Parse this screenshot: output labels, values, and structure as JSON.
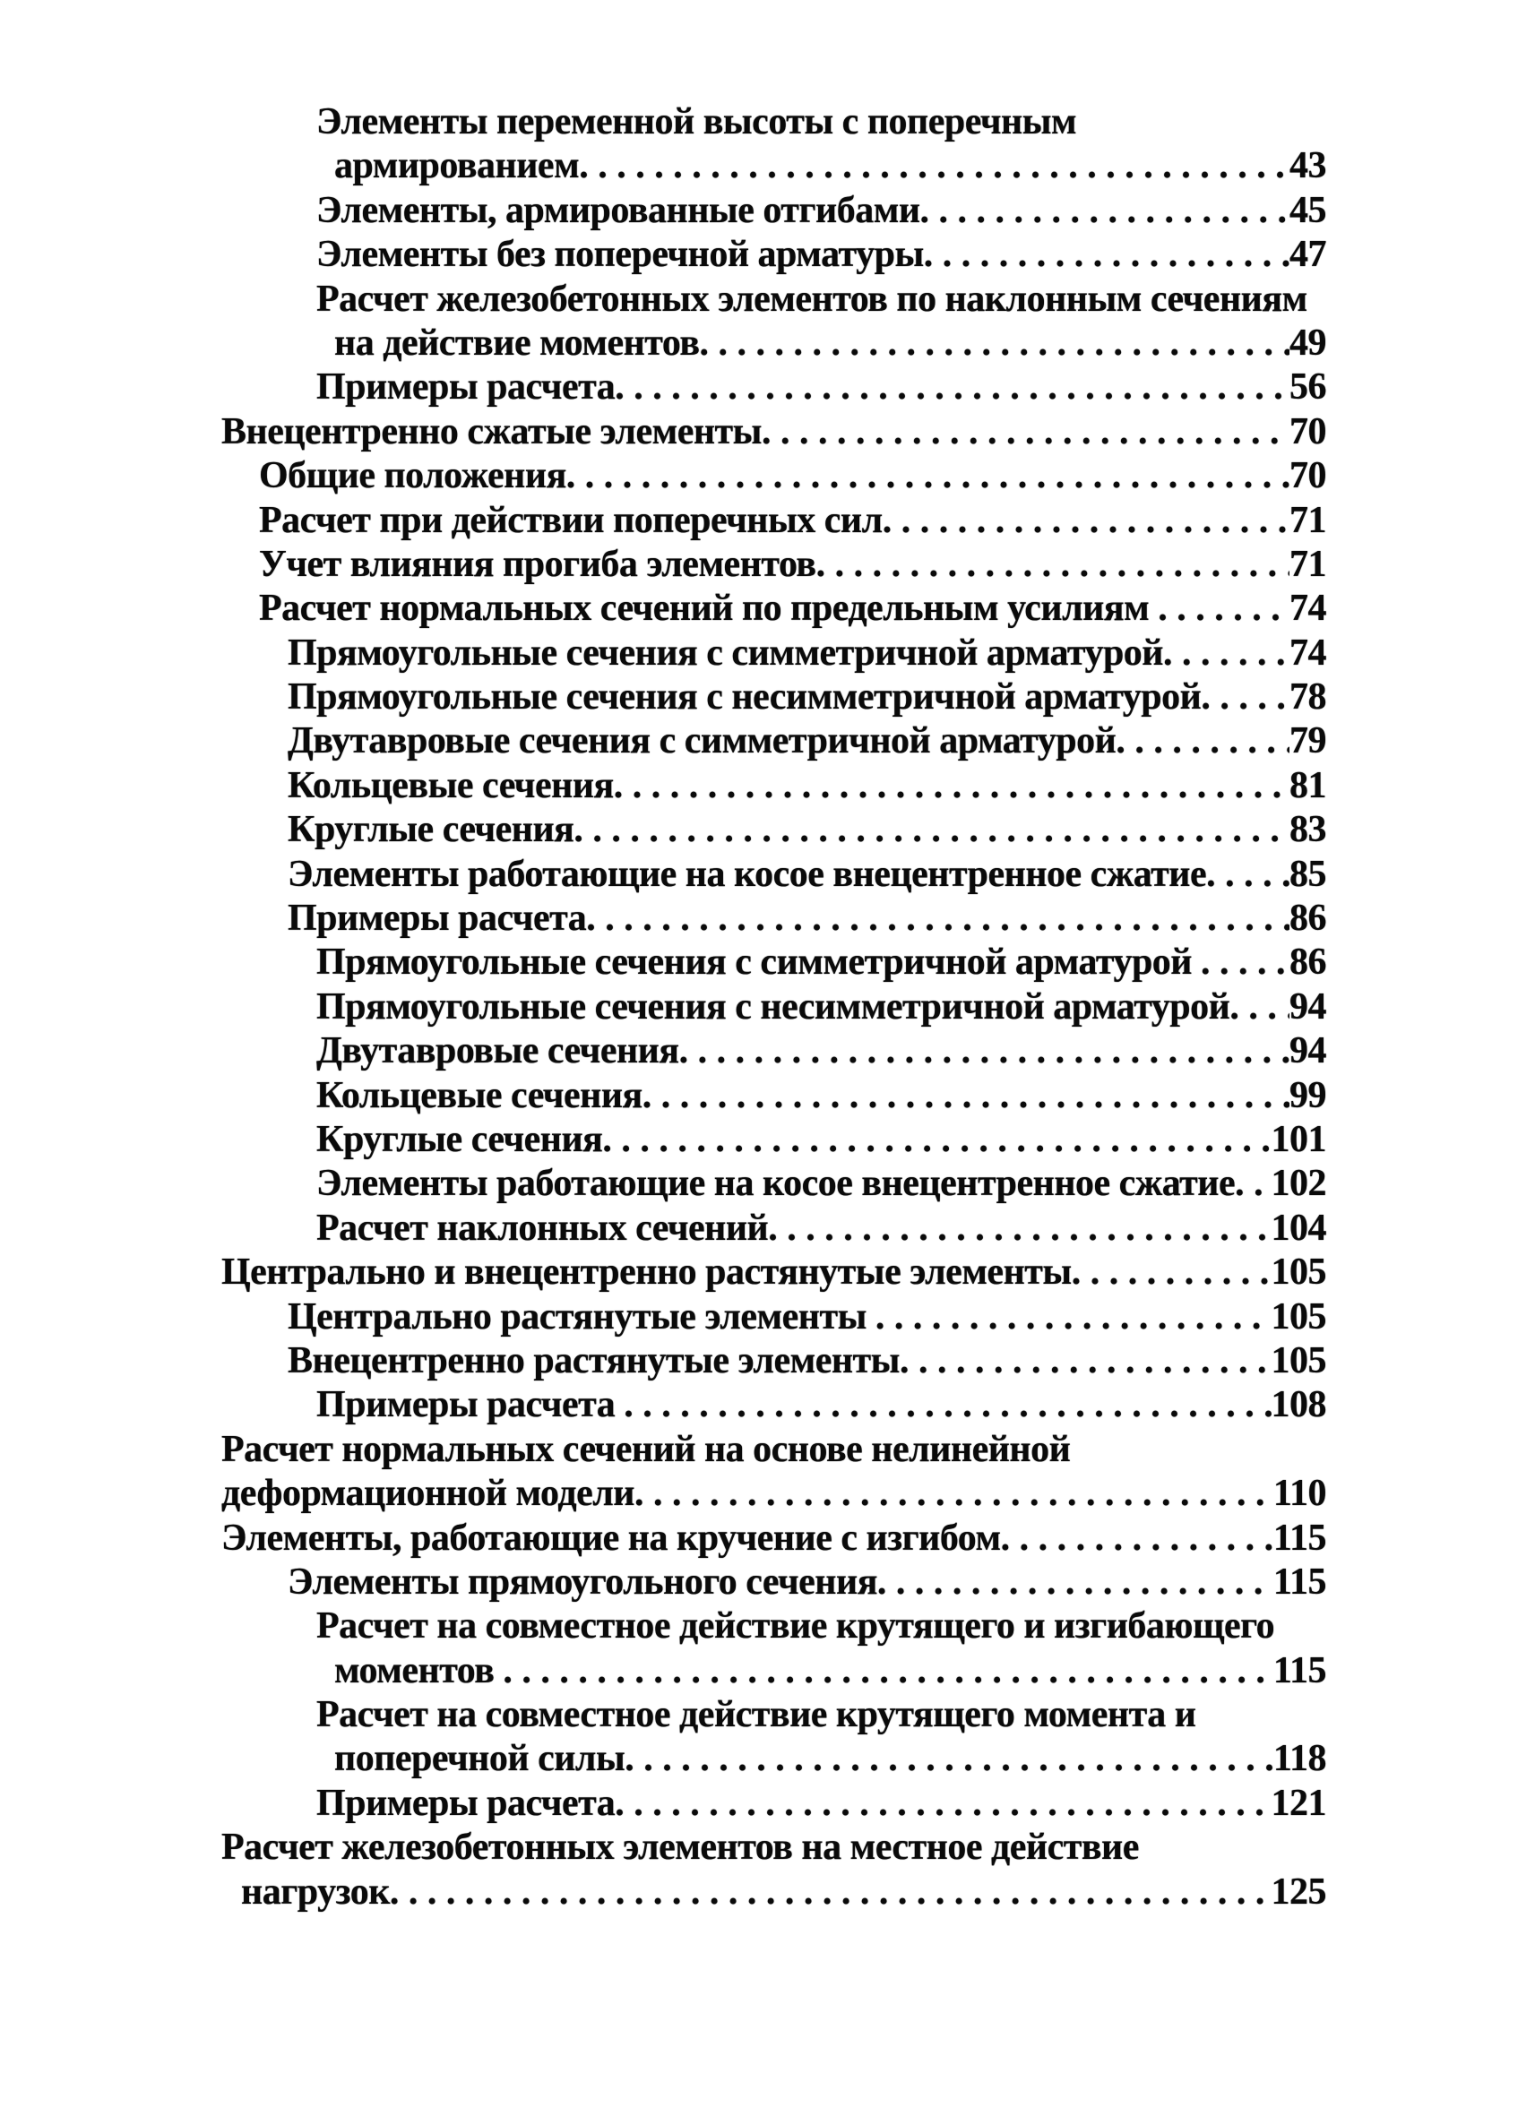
{
  "page": {
    "background": "#ffffff",
    "text_color": "#0a0a0a",
    "kind": "table-of-contents-scan",
    "language": "ru"
  },
  "toc": {
    "lines": [
      {
        "text": "Элементы переменной высоты с поперечным",
        "page": null,
        "level": 3,
        "cont": false
      },
      {
        "text": "армированием",
        "page": "43",
        "level": 3,
        "cont": true
      },
      {
        "text": "Элементы, армированные отгибами",
        "page": "45",
        "level": 3,
        "cont": false
      },
      {
        "text": "Элементы без поперечной арматуры",
        "page": "47",
        "level": 3,
        "cont": false
      },
      {
        "text": "Расчет железобетонных элементов по наклонным сечениям",
        "page": null,
        "level": 3,
        "cont": false
      },
      {
        "text": "на действие моментов",
        "page": "49",
        "level": 3,
        "cont": true
      },
      {
        "text": "Примеры расчета",
        "page": "56",
        "level": 3,
        "cont": false
      },
      {
        "text": "Внецентренно сжатые элементы",
        "page": "70",
        "level": 0,
        "cont": false
      },
      {
        "text": "Общие положения",
        "page": "70",
        "level": 1,
        "cont": false
      },
      {
        "text": "Расчет при действии поперечных сил",
        "page": "71",
        "level": 1,
        "cont": false
      },
      {
        "text": "Учет влияния прогиба элементов",
        "page": "71",
        "level": 1,
        "cont": false
      },
      {
        "text": "Расчет нормальных сечений по предельным усилиям ",
        "page": "74",
        "level": 1,
        "cont": false
      },
      {
        "text": "Прямоугольные сечения с симметричной арматурой",
        "page": "74",
        "level": 2,
        "cont": false
      },
      {
        "text": "Прямоугольные сечения с несимметричной арматурой",
        "page": "78",
        "level": 2,
        "cont": false
      },
      {
        "text": "Двутавровые сечения с симметричной арматурой",
        "page": "79",
        "level": 2,
        "cont": false
      },
      {
        "text": "Кольцевые сечения",
        "page": "81",
        "level": 2,
        "cont": false
      },
      {
        "text": "Круглые сечения",
        "page": "83",
        "level": 2,
        "cont": false
      },
      {
        "text": "Элементы работающие на косое внецентренное сжатие",
        "page": "85",
        "level": 2,
        "cont": false
      },
      {
        "text": "Примеры расчета",
        "page": "86",
        "level": 2,
        "cont": false
      },
      {
        "text": "Прямоугольные сечения с симметричной арматурой ",
        "page": "86",
        "level": 3,
        "cont": false
      },
      {
        "text": "Прямоугольные сечения с несимметричной арматурой",
        "page": "94",
        "level": 3,
        "cont": false
      },
      {
        "text": "Двутавровые сечения",
        "page": "94",
        "level": 3,
        "cont": false
      },
      {
        "text": "Кольцевые сечения",
        "page": "99",
        "level": 3,
        "cont": false
      },
      {
        "text": "Круглые сечения",
        "page": "101",
        "level": 3,
        "cont": false
      },
      {
        "text": "Элементы работающие на косое внецентренное сжатие",
        "page": "102",
        "level": 3,
        "cont": false
      },
      {
        "text": "Расчет наклонных сечений",
        "page": "104",
        "level": 3,
        "cont": false
      },
      {
        "text": "Центрально и внецентренно растянутые элементы",
        "page": "105",
        "level": 0,
        "cont": false
      },
      {
        "text": "Центрально растянутые элементы ",
        "page": "105",
        "level": 2,
        "cont": false
      },
      {
        "text": "Внецентренно растянутые элементы",
        "page": "105",
        "level": 2,
        "cont": false
      },
      {
        "text": "Примеры расчета ",
        "page": "108",
        "level": 3,
        "cont": false
      },
      {
        "text": "Расчет нормальных сечений на основе нелинейной",
        "page": null,
        "level": 0,
        "cont": false
      },
      {
        "text": "деформационной модели",
        "page": "110",
        "level": 0,
        "cont": false
      },
      {
        "text": "Элементы, работающие на кручение с изгибом",
        "page": "115",
        "level": 0,
        "cont": false
      },
      {
        "text": "Элементы прямоугольного сечения",
        "page": "115",
        "level": 2,
        "cont": false
      },
      {
        "text": "Расчет на совместное действие крутящего и изгибающего",
        "page": null,
        "level": 3,
        "cont": false
      },
      {
        "text": "моментов ",
        "page": "115",
        "level": 3,
        "cont": true
      },
      {
        "text": "Расчет на совместное действие крутящего момента и",
        "page": null,
        "level": 3,
        "cont": false
      },
      {
        "text": "поперечной силы",
        "page": "118",
        "level": 3,
        "cont": true
      },
      {
        "text": "Примеры расчета",
        "page": "121",
        "level": 3,
        "cont": false
      },
      {
        "text": "Расчет железобетонных элементов на местное действие",
        "page": null,
        "level": 0,
        "cont": false
      },
      {
        "text": "нагрузок",
        "page": "125",
        "level": 0,
        "cont": true
      }
    ]
  }
}
